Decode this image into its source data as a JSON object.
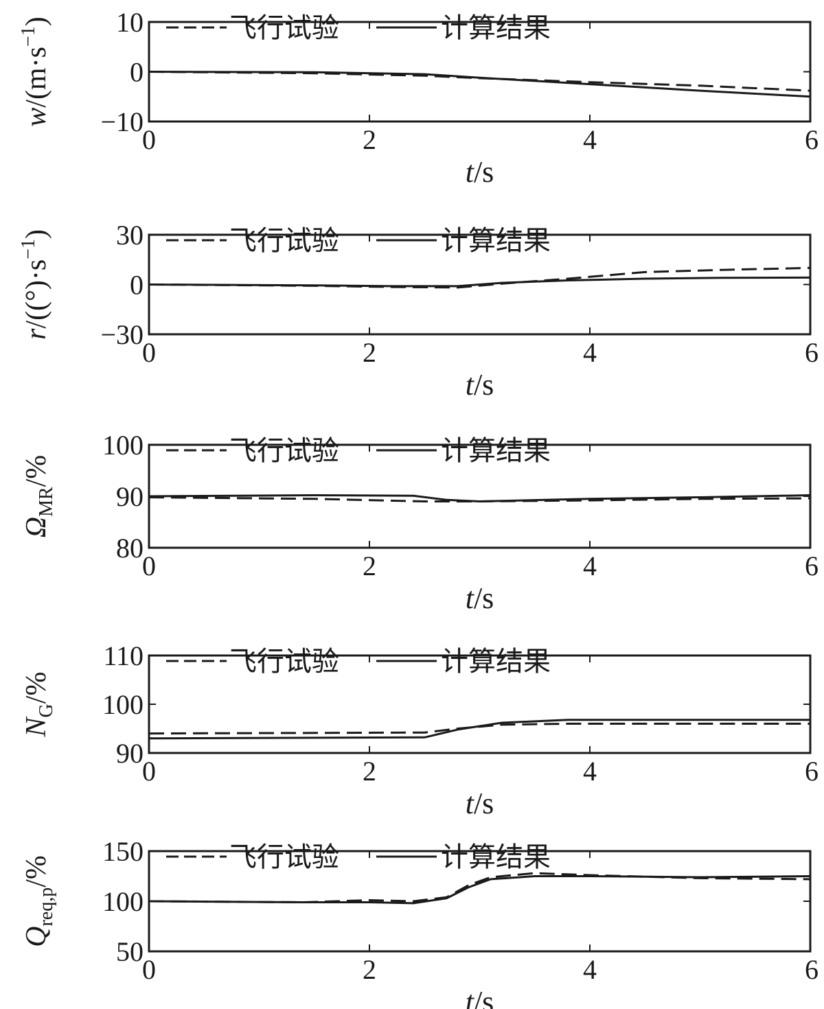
{
  "legend": {
    "flight": "飞行试验",
    "calc": "计算结果"
  },
  "colors": {
    "line": "#1a1a1a"
  },
  "chart_data": [
    {
      "type": "line",
      "ylabel": {
        "sym": "w",
        "unit": "/(m·s",
        "sup": "−1",
        "close": ")"
      },
      "xlabel": {
        "sym": "t",
        "unit": "/s"
      },
      "xlim": [
        0,
        6
      ],
      "ylim": [
        -10,
        10
      ],
      "xticks": [
        "0",
        "2",
        "4",
        "6"
      ],
      "yticks": [
        "10",
        "0",
        "−10"
      ],
      "ytick_values": [
        10,
        0,
        -10
      ],
      "series": [
        {
          "name": "飞行试验",
          "style": "dashed",
          "x": [
            0,
            1.5,
            2.5,
            3,
            4,
            5,
            6
          ],
          "y": [
            0,
            -0.3,
            -0.8,
            -1.3,
            -2.1,
            -2.8,
            -3.8
          ]
        },
        {
          "name": "计算结果",
          "style": "solid",
          "x": [
            0,
            1.5,
            2.5,
            3,
            4,
            5,
            6
          ],
          "y": [
            0,
            -0.1,
            -0.5,
            -1.2,
            -2.5,
            -3.8,
            -5.0
          ]
        }
      ]
    },
    {
      "type": "line",
      "ylabel": {
        "sym": "r",
        "unit": "/((°)·s",
        "sup": "−1",
        "close": ")"
      },
      "xlabel": {
        "sym": "t",
        "unit": "/s"
      },
      "xlim": [
        0,
        6
      ],
      "ylim": [
        -30,
        30
      ],
      "xticks": [
        "0",
        "2",
        "4",
        "6"
      ],
      "yticks": [
        "30",
        "0",
        "−30"
      ],
      "ytick_values": [
        30,
        0,
        -30
      ],
      "series": [
        {
          "name": "飞行试验",
          "style": "dashed",
          "x": [
            0,
            1.5,
            2.2,
            2.8,
            3.2,
            3.8,
            4.5,
            5.2,
            6
          ],
          "y": [
            0,
            -0.8,
            -1.5,
            -1.8,
            0.5,
            3.5,
            7.5,
            8.8,
            10.0
          ]
        },
        {
          "name": "计算结果",
          "style": "solid",
          "x": [
            0,
            1.5,
            2.2,
            2.8,
            3.2,
            3.8,
            4.5,
            5.2,
            6
          ],
          "y": [
            0,
            -0.5,
            -1.0,
            -1.0,
            1.0,
            2.5,
            3.5,
            4.0,
            4.2
          ]
        }
      ]
    },
    {
      "type": "line",
      "ylabel": {
        "sym": "Ω",
        "sub": "MR",
        "unit": "/%"
      },
      "xlabel": {
        "sym": "t",
        "unit": "/s"
      },
      "xlim": [
        0,
        6
      ],
      "ylim": [
        80,
        100
      ],
      "xticks": [
        "0",
        "2",
        "4",
        "6"
      ],
      "yticks": [
        "100",
        "90",
        "80"
      ],
      "ytick_values": [
        100,
        90,
        80
      ],
      "series": [
        {
          "name": "飞行试验",
          "style": "dashed",
          "x": [
            0,
            1.5,
            2.5,
            3,
            4,
            5,
            6
          ],
          "y": [
            89.8,
            89.5,
            89.0,
            89.0,
            89.2,
            89.5,
            89.6
          ]
        },
        {
          "name": "计算结果",
          "style": "solid",
          "x": [
            0,
            1.5,
            2.4,
            2.7,
            3,
            4,
            5,
            6
          ],
          "y": [
            90.0,
            90.2,
            90.1,
            89.3,
            89.0,
            89.5,
            89.8,
            90.2
          ]
        }
      ]
    },
    {
      "type": "line",
      "ylabel": {
        "sym": "N",
        "sub": "G",
        "unit": "/%"
      },
      "xlabel": {
        "sym": "t",
        "unit": "/s"
      },
      "xlim": [
        0,
        6
      ],
      "ylim": [
        90,
        110
      ],
      "xticks": [
        "0",
        "2",
        "4",
        "6"
      ],
      "yticks": [
        "110",
        "100",
        "90"
      ],
      "ytick_values": [
        110,
        100,
        90
      ],
      "series": [
        {
          "name": "飞行试验",
          "style": "dashed",
          "x": [
            0,
            2.5,
            2.8,
            3.2,
            3.8,
            6
          ],
          "y": [
            94.0,
            94.2,
            95.0,
            95.8,
            96.0,
            96.0
          ]
        },
        {
          "name": "计算结果",
          "style": "solid",
          "x": [
            0,
            2.5,
            2.8,
            3.2,
            3.8,
            6
          ],
          "y": [
            93.0,
            93.2,
            94.8,
            96.2,
            96.8,
            96.8
          ]
        }
      ]
    },
    {
      "type": "line",
      "ylabel": {
        "sym": "Q",
        "sub": "req,p",
        "unit": "/%"
      },
      "xlabel": {
        "sym": "t",
        "unit": "/s"
      },
      "xlim": [
        0,
        6
      ],
      "ylim": [
        50,
        150
      ],
      "xticks": [
        "0",
        "2",
        "4",
        "6"
      ],
      "yticks": [
        "150",
        "100",
        "50"
      ],
      "ytick_values": [
        150,
        100,
        50
      ],
      "series": [
        {
          "name": "飞行试验",
          "style": "dashed",
          "x": [
            0,
            1.4,
            2.0,
            2.4,
            2.7,
            2.9,
            3.1,
            3.5,
            4.0,
            5.0,
            6
          ],
          "y": [
            100,
            99,
            101,
            100,
            104,
            116,
            124,
            128,
            126,
            123,
            122
          ]
        },
        {
          "name": "计算结果",
          "style": "solid",
          "x": [
            0,
            1.4,
            2.0,
            2.4,
            2.7,
            2.9,
            3.1,
            3.5,
            4.0,
            5.0,
            6
          ],
          "y": [
            100,
            99,
            99,
            98,
            103,
            114,
            122,
            125,
            125,
            124,
            125
          ]
        }
      ]
    }
  ]
}
